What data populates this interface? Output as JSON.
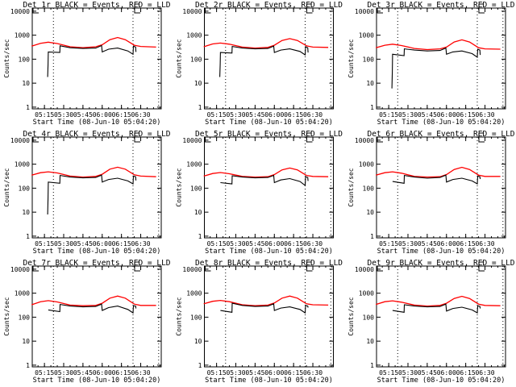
{
  "chart_data": [
    {
      "type": "line",
      "title": "Det 1r BLACK = Events, RED = LLD",
      "xlabel": "Start Time (08-Jun-10 05:04:20)",
      "ylabel": "Counts/sec",
      "red": [
        [
          5,
          350
        ],
        [
          12,
          460
        ],
        [
          18,
          510
        ],
        [
          25,
          450
        ],
        [
          35,
          330
        ],
        [
          45,
          300
        ],
        [
          55,
          330
        ],
        [
          60,
          400
        ],
        [
          66,
          650
        ],
        [
          72,
          800
        ],
        [
          78,
          650
        ],
        [
          85,
          380
        ],
        [
          90,
          340
        ],
        [
          102,
          320
        ]
      ],
      "black": [
        [
          17.5,
          18
        ],
        [
          17.8,
          60
        ],
        [
          18,
          200
        ],
        [
          27,
          190
        ],
        [
          27.2,
          360
        ],
        [
          35,
          300
        ],
        [
          45,
          280
        ],
        [
          55,
          290
        ],
        [
          59.5,
          370
        ],
        [
          60,
          200
        ],
        [
          65,
          260
        ],
        [
          72,
          290
        ],
        [
          80,
          220
        ],
        [
          84,
          160
        ],
        [
          84.3,
          350
        ],
        [
          86,
          320
        ],
        [
          86.3,
          200
        ]
      ]
    },
    {
      "type": "line",
      "title": "Det 2r BLACK = Events, RED = LLD",
      "xlabel": "Start Time (08-Jun-10 05:04:20)",
      "ylabel": "Counts/sec",
      "red": [
        [
          5,
          330
        ],
        [
          12,
          430
        ],
        [
          18,
          470
        ],
        [
          25,
          420
        ],
        [
          35,
          320
        ],
        [
          45,
          290
        ],
        [
          55,
          310
        ],
        [
          60,
          380
        ],
        [
          66,
          600
        ],
        [
          72,
          720
        ],
        [
          78,
          600
        ],
        [
          85,
          360
        ],
        [
          90,
          320
        ],
        [
          102,
          310
        ]
      ],
      "black": [
        [
          17.5,
          18
        ],
        [
          17.8,
          60
        ],
        [
          18,
          190
        ],
        [
          27,
          180
        ],
        [
          27.2,
          340
        ],
        [
          35,
          290
        ],
        [
          45,
          270
        ],
        [
          55,
          280
        ],
        [
          59.5,
          350
        ],
        [
          60,
          190
        ],
        [
          65,
          240
        ],
        [
          72,
          270
        ],
        [
          80,
          210
        ],
        [
          84,
          150
        ],
        [
          84.3,
          330
        ],
        [
          86,
          300
        ],
        [
          86.3,
          190
        ]
      ]
    },
    {
      "type": "line",
      "title": "Det 3r BLACK = Events, RED = LLD",
      "xlabel": "Start Time (08-Jun-10 05:04:20)",
      "ylabel": "Counts/sec",
      "red": [
        [
          5,
          300
        ],
        [
          12,
          380
        ],
        [
          18,
          420
        ],
        [
          25,
          370
        ],
        [
          35,
          280
        ],
        [
          45,
          250
        ],
        [
          55,
          270
        ],
        [
          60,
          320
        ],
        [
          66,
          520
        ],
        [
          72,
          640
        ],
        [
          78,
          520
        ],
        [
          85,
          300
        ],
        [
          90,
          270
        ],
        [
          102,
          260
        ]
      ],
      "black": [
        [
          17.5,
          6
        ],
        [
          17.8,
          30
        ],
        [
          18,
          160
        ],
        [
          27,
          140
        ],
        [
          27.2,
          270
        ],
        [
          35,
          240
        ],
        [
          45,
          220
        ],
        [
          55,
          230
        ],
        [
          59.5,
          290
        ],
        [
          60,
          160
        ],
        [
          65,
          200
        ],
        [
          72,
          220
        ],
        [
          80,
          170
        ],
        [
          84,
          120
        ],
        [
          84.3,
          260
        ],
        [
          86,
          240
        ],
        [
          86.3,
          150
        ]
      ]
    },
    {
      "type": "line",
      "title": "Det 4r BLACK = Events, RED = LLD",
      "xlabel": "Start Time (08-Jun-10 05:04:20)",
      "ylabel": "Counts/sec",
      "red": [
        [
          5,
          350
        ],
        [
          12,
          440
        ],
        [
          18,
          480
        ],
        [
          25,
          430
        ],
        [
          35,
          320
        ],
        [
          45,
          290
        ],
        [
          55,
          310
        ],
        [
          60,
          380
        ],
        [
          66,
          620
        ],
        [
          72,
          750
        ],
        [
          78,
          620
        ],
        [
          85,
          360
        ],
        [
          90,
          320
        ],
        [
          102,
          300
        ]
      ],
      "black": [
        [
          17.5,
          8
        ],
        [
          17.8,
          40
        ],
        [
          18,
          180
        ],
        [
          27,
          160
        ],
        [
          27.2,
          340
        ],
        [
          35,
          290
        ],
        [
          45,
          270
        ],
        [
          55,
          280
        ],
        [
          59.5,
          350
        ],
        [
          60,
          180
        ],
        [
          65,
          230
        ],
        [
          72,
          260
        ],
        [
          80,
          200
        ],
        [
          84,
          150
        ],
        [
          84.3,
          320
        ],
        [
          86,
          300
        ],
        [
          86.3,
          210
        ]
      ]
    },
    {
      "type": "line",
      "title": "Det 5r BLACK = Events, RED = LLD",
      "xlabel": "Start Time (08-Jun-10 05:04:20)",
      "ylabel": "Counts/sec",
      "red": [
        [
          5,
          320
        ],
        [
          12,
          410
        ],
        [
          18,
          450
        ],
        [
          25,
          400
        ],
        [
          35,
          310
        ],
        [
          45,
          290
        ],
        [
          55,
          300
        ],
        [
          60,
          370
        ],
        [
          66,
          580
        ],
        [
          72,
          690
        ],
        [
          78,
          580
        ],
        [
          85,
          340
        ],
        [
          90,
          310
        ],
        [
          102,
          300
        ]
      ],
      "black": [
        [
          18,
          170
        ],
        [
          27,
          150
        ],
        [
          27.2,
          330
        ],
        [
          35,
          290
        ],
        [
          45,
          270
        ],
        [
          55,
          280
        ],
        [
          59.5,
          340
        ],
        [
          60,
          170
        ],
        [
          65,
          220
        ],
        [
          72,
          250
        ],
        [
          80,
          190
        ],
        [
          84,
          130
        ],
        [
          84.3,
          300
        ],
        [
          86,
          280
        ],
        [
          86.3,
          200
        ]
      ]
    },
    {
      "type": "line",
      "title": "Det 6r BLACK = Events, RED = LLD",
      "xlabel": "Start Time (08-Jun-10 05:04:20)",
      "ylabel": "Counts/sec",
      "red": [
        [
          5,
          350
        ],
        [
          12,
          440
        ],
        [
          18,
          480
        ],
        [
          25,
          420
        ],
        [
          35,
          310
        ],
        [
          45,
          290
        ],
        [
          55,
          300
        ],
        [
          60,
          370
        ],
        [
          66,
          600
        ],
        [
          72,
          740
        ],
        [
          78,
          600
        ],
        [
          85,
          350
        ],
        [
          90,
          310
        ],
        [
          102,
          310
        ]
      ],
      "black": [
        [
          18,
          190
        ],
        [
          27,
          160
        ],
        [
          27.2,
          340
        ],
        [
          35,
          290
        ],
        [
          45,
          260
        ],
        [
          55,
          280
        ],
        [
          59.5,
          350
        ],
        [
          60,
          180
        ],
        [
          65,
          230
        ],
        [
          72,
          260
        ],
        [
          80,
          200
        ],
        [
          84,
          150
        ],
        [
          84.3,
          320
        ],
        [
          86,
          300
        ],
        [
          86.3,
          240
        ]
      ]
    },
    {
      "type": "line",
      "title": "Det 7r BLACK = Events, RED = LLD",
      "xlabel": "Start Time (08-Jun-10 05:04:20)",
      "ylabel": "Counts/sec",
      "red": [
        [
          5,
          330
        ],
        [
          12,
          440
        ],
        [
          18,
          490
        ],
        [
          25,
          430
        ],
        [
          35,
          320
        ],
        [
          45,
          300
        ],
        [
          55,
          310
        ],
        [
          60,
          380
        ],
        [
          66,
          620
        ],
        [
          72,
          760
        ],
        [
          78,
          620
        ],
        [
          85,
          350
        ],
        [
          90,
          310
        ],
        [
          102,
          310
        ]
      ],
      "black": [
        [
          18,
          200
        ],
        [
          27,
          170
        ],
        [
          27.2,
          340
        ],
        [
          35,
          290
        ],
        [
          45,
          270
        ],
        [
          55,
          280
        ],
        [
          59.5,
          350
        ],
        [
          60,
          190
        ],
        [
          65,
          250
        ],
        [
          72,
          290
        ],
        [
          80,
          210
        ],
        [
          84,
          150
        ],
        [
          84.3,
          300
        ],
        [
          86,
          290
        ],
        [
          86.3,
          230
        ]
      ]
    },
    {
      "type": "line",
      "title": "Det 8r BLACK = Events, RED = LLD",
      "xlabel": "Start Time (08-Jun-10 05:04:20)",
      "ylabel": "Counts/sec",
      "red": [
        [
          5,
          360
        ],
        [
          12,
          460
        ],
        [
          18,
          500
        ],
        [
          25,
          440
        ],
        [
          35,
          330
        ],
        [
          45,
          300
        ],
        [
          55,
          320
        ],
        [
          60,
          390
        ],
        [
          66,
          620
        ],
        [
          72,
          760
        ],
        [
          78,
          620
        ],
        [
          85,
          360
        ],
        [
          90,
          330
        ],
        [
          102,
          320
        ]
      ],
      "black": [
        [
          18,
          190
        ],
        [
          27,
          160
        ],
        [
          27.2,
          380
        ],
        [
          35,
          310
        ],
        [
          45,
          280
        ],
        [
          55,
          290
        ],
        [
          59.5,
          360
        ],
        [
          60,
          190
        ],
        [
          65,
          240
        ],
        [
          72,
          270
        ],
        [
          80,
          210
        ],
        [
          84,
          150
        ],
        [
          84.3,
          310
        ],
        [
          86,
          290
        ],
        [
          86.3,
          250
        ]
      ]
    },
    {
      "type": "line",
      "title": "Det 9r BLACK = Events, RED = LLD",
      "xlabel": "Start Time (08-Jun-10 05:04:20)",
      "ylabel": "Counts/sec",
      "red": [
        [
          5,
          340
        ],
        [
          12,
          440
        ],
        [
          18,
          480
        ],
        [
          25,
          420
        ],
        [
          35,
          320
        ],
        [
          45,
          290
        ],
        [
          55,
          310
        ],
        [
          60,
          380
        ],
        [
          66,
          600
        ],
        [
          72,
          740
        ],
        [
          78,
          600
        ],
        [
          85,
          350
        ],
        [
          90,
          310
        ],
        [
          102,
          300
        ]
      ],
      "black": [
        [
          18,
          190
        ],
        [
          27,
          160
        ],
        [
          27.2,
          330
        ],
        [
          35,
          290
        ],
        [
          45,
          270
        ],
        [
          55,
          280
        ],
        [
          59.5,
          350
        ],
        [
          60,
          180
        ],
        [
          65,
          230
        ],
        [
          72,
          260
        ],
        [
          80,
          200
        ],
        [
          84,
          150
        ],
        [
          84.3,
          300
        ],
        [
          86,
          280
        ],
        [
          86.3,
          230
        ]
      ]
    }
  ],
  "axes": {
    "x_unit": "minutes after 05:00",
    "xlim": [
      5.5,
      106
    ],
    "ylim": [
      0.85,
      13500
    ],
    "yscale": "log",
    "x_ticks": [
      {
        "v": 15,
        "label": "05:15"
      },
      {
        "v": 30,
        "label": "05:30"
      },
      {
        "v": 45,
        "label": "05:45"
      },
      {
        "v": 60,
        "label": "06:00"
      },
      {
        "v": 75,
        "label": "06:15"
      },
      {
        "v": 90,
        "label": "06:30"
      }
    ],
    "y_ticks": [
      {
        "v": 1,
        "label": "1"
      },
      {
        "v": 10,
        "label": "10"
      },
      {
        "v": 100,
        "label": "100"
      },
      {
        "v": 1000,
        "label": "1000"
      },
      {
        "v": 10000,
        "label": "10000"
      }
    ],
    "dotted_lines": [
      22,
      84,
      104
    ],
    "grid": false
  },
  "colors": {
    "events": "#000000",
    "lld": "#ff0000"
  }
}
